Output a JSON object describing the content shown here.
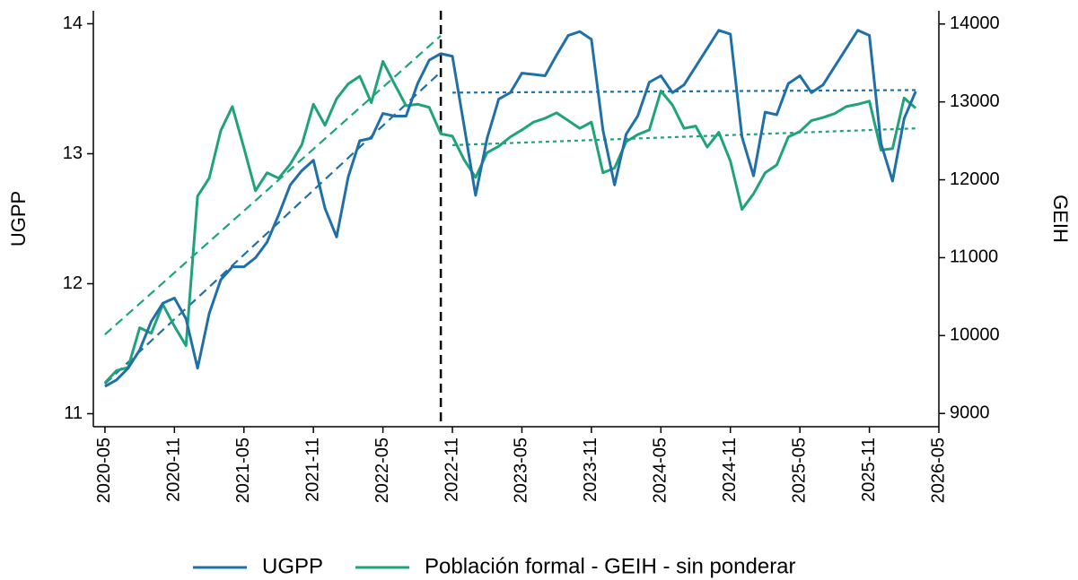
{
  "chart_data": {
    "type": "line",
    "y_label": "UGPP",
    "y2_label": "GEIH",
    "x": [
      "2020-05",
      "2020-06",
      "2020-07",
      "2020-08",
      "2020-09",
      "2020-10",
      "2020-11",
      "2020-12",
      "2021-01",
      "2021-02",
      "2021-03",
      "2021-04",
      "2021-05",
      "2021-06",
      "2021-07",
      "2021-08",
      "2021-09",
      "2021-10",
      "2021-11",
      "2021-12",
      "2022-01",
      "2022-02",
      "2022-03",
      "2022-04",
      "2022-05",
      "2022-06",
      "2022-07",
      "2022-08",
      "2022-09",
      "2022-10",
      "2022-11",
      "2022-12",
      "2023-01",
      "2023-02",
      "2023-03",
      "2023-04",
      "2023-05",
      "2023-06",
      "2023-07",
      "2023-08",
      "2023-09",
      "2023-10",
      "2023-11",
      "2023-12",
      "2024-01",
      "2024-02",
      "2024-03",
      "2024-04",
      "2024-05",
      "2024-06",
      "2024-07",
      "2024-08",
      "2024-09",
      "2024-10",
      "2024-11",
      "2024-12",
      "2025-01",
      "2025-02",
      "2025-03",
      "2025-04",
      "2025-05",
      "2025-06",
      "2025-07",
      "2025-08",
      "2025-09",
      "2025-10",
      "2025-11",
      "2025-12",
      "2026-01",
      "2026-02",
      "2026-03"
    ],
    "series": [
      {
        "name": "UGPP",
        "color": "#1f70a8",
        "axis": "y",
        "values": [
          11.21,
          11.26,
          11.35,
          11.49,
          11.71,
          11.85,
          11.89,
          11.73,
          11.35,
          11.77,
          12.03,
          12.13,
          12.13,
          12.2,
          12.32,
          12.53,
          12.76,
          12.87,
          12.95,
          12.58,
          12.36,
          12.82,
          13.1,
          13.12,
          13.31,
          13.29,
          13.29,
          13.54,
          13.72,
          13.77,
          13.75,
          13.22,
          12.68,
          13.12,
          13.42,
          13.47,
          13.62,
          13.61,
          13.6,
          13.76,
          13.91,
          13.94,
          13.88,
          13.18,
          12.76,
          13.15,
          13.29,
          13.55,
          13.6,
          13.47,
          13.53,
          13.67,
          13.81,
          13.95,
          13.92,
          13.13,
          12.83,
          13.32,
          13.3,
          13.54,
          13.6,
          13.47,
          13.53,
          13.67,
          13.81,
          13.95,
          13.91,
          13.08,
          12.79,
          13.27,
          13.48
        ]
      },
      {
        "name": "Población formal - GEIH - sin ponderar",
        "color": "#1fa37a",
        "axis": "y2",
        "values": [
          9392,
          9550,
          9590,
          10100,
          10030,
          10400,
          10120,
          9870,
          11790,
          12020,
          12630,
          12940,
          12410,
          11860,
          12090,
          12020,
          12200,
          12450,
          12970,
          12700,
          13040,
          13230,
          13330,
          12990,
          13520,
          13230,
          12950,
          12970,
          12930,
          12590,
          12560,
          12260,
          12030,
          12350,
          12430,
          12550,
          12640,
          12740,
          12790,
          12860,
          12760,
          12660,
          12740,
          12090,
          12150,
          12490,
          12580,
          12640,
          13140,
          12960,
          12660,
          12690,
          12420,
          12610,
          12240,
          11620,
          11820,
          12090,
          12190,
          12550,
          12620,
          12760,
          12800,
          12850,
          12940,
          12970,
          13010,
          12380,
          12400,
          13050,
          12920
        ]
      }
    ],
    "trend_lines": [
      {
        "color": "#1f70a8",
        "axis": "y",
        "x": [
          "2020-05",
          "2022-10"
        ],
        "values": [
          11.23,
          13.63
        ]
      },
      {
        "color": "#1f70a8",
        "axis": "y",
        "x": [
          "2022-11",
          "2026-03"
        ],
        "values": [
          13.47,
          13.49
        ]
      },
      {
        "color": "#1fa37a",
        "axis": "y2",
        "x": [
          "2020-05",
          "2022-10"
        ],
        "values": [
          10014,
          13850
        ]
      },
      {
        "color": "#1fa37a",
        "axis": "y2",
        "x": [
          "2022-11",
          "2026-03"
        ],
        "values": [
          12445,
          12660
        ]
      }
    ],
    "event_line": {
      "x": "2022-10",
      "color": "#000000"
    },
    "xlim": [
      "2020-04",
      "2026-05"
    ],
    "xticks": [
      "2020-05",
      "2020-11",
      "2021-05",
      "2021-11",
      "2022-05",
      "2022-11",
      "2023-05",
      "2023-11",
      "2024-05",
      "2024-11",
      "2025-05",
      "2025-11",
      "2026-05"
    ],
    "ylim": [
      10.9,
      14.1
    ],
    "yticks": [
      11,
      12,
      13,
      14
    ],
    "y2lim": [
      8830,
      14170
    ],
    "y2ticks": [
      9000,
      10000,
      11000,
      12000,
      13000,
      14000
    ],
    "legend": "bottom"
  }
}
